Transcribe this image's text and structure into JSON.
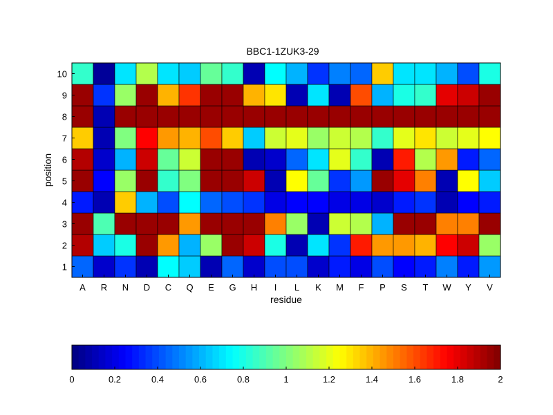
{
  "chart_data": {
    "type": "heatmap",
    "title": "BBC1-1ZUK3-29",
    "xlabel": "residue",
    "ylabel": "position",
    "x_categories": [
      "A",
      "R",
      "N",
      "D",
      "C",
      "Q",
      "E",
      "G",
      "H",
      "I",
      "L",
      "K",
      "M",
      "F",
      "P",
      "S",
      "T",
      "W",
      "Y",
      "V"
    ],
    "y_categories": [
      "1",
      "2",
      "3",
      "4",
      "5",
      "6",
      "7",
      "8",
      "9",
      "10"
    ],
    "colormap": "jet",
    "clim": [
      0,
      2
    ],
    "colorbar": {
      "placement": "bottom",
      "ticks": [
        "0",
        "0.2",
        "0.4",
        "0.6",
        "0.8",
        "1",
        "1.2",
        "1.4",
        "1.6",
        "1.8",
        "2"
      ],
      "tick_values": [
        0,
        0.2,
        0.4,
        0.6,
        0.8,
        1,
        1.2,
        1.4,
        1.6,
        1.8,
        2
      ]
    },
    "values_by_position": [
      [
        0.45,
        0.15,
        0.35,
        0.1,
        0.75,
        0.65,
        0.1,
        0.45,
        0.15,
        0.4,
        0.4,
        0.15,
        0.3,
        0.2,
        0.4,
        0.25,
        0.3,
        0.5,
        0.3,
        0.55
      ],
      [
        1.9,
        0.65,
        0.8,
        1.95,
        1.45,
        0.6,
        1.05,
        1.95,
        1.85,
        0.8,
        0.1,
        0.7,
        0.35,
        1.7,
        1.45,
        1.45,
        1.4,
        1.75,
        1.85,
        1.05
      ],
      [
        1.95,
        0.9,
        1.95,
        1.95,
        1.95,
        1.45,
        1.95,
        1.95,
        1.95,
        1.5,
        1.05,
        0.1,
        1.15,
        1.1,
        0.6,
        1.95,
        1.95,
        1.5,
        1.5,
        1.95
      ],
      [
        0.3,
        0.1,
        1.35,
        0.6,
        0.4,
        0.75,
        0.45,
        0.4,
        0.35,
        0.2,
        0.25,
        0.25,
        0.2,
        0.2,
        0.15,
        0.3,
        0.35,
        0.1,
        0.25,
        0.3
      ],
      [
        1.95,
        0.25,
        1.05,
        1.95,
        0.85,
        1.0,
        1.95,
        1.95,
        1.85,
        0.1,
        1.25,
        0.95,
        0.35,
        0.55,
        1.95,
        1.8,
        1.5,
        0.1,
        1.25,
        0.65
      ],
      [
        1.9,
        0.15,
        0.6,
        1.85,
        0.95,
        1.15,
        1.95,
        1.95,
        0.1,
        0.15,
        0.45,
        0.7,
        1.2,
        0.85,
        0.1,
        1.7,
        1.1,
        1.45,
        0.3,
        0.45
      ],
      [
        1.35,
        0.1,
        1.0,
        1.75,
        1.45,
        1.4,
        1.6,
        1.35,
        0.65,
        1.15,
        1.2,
        1.05,
        1.15,
        1.1,
        0.85,
        1.2,
        1.3,
        1.15,
        1.2,
        1.25
      ],
      [
        1.95,
        0.1,
        1.95,
        1.95,
        1.95,
        1.95,
        1.95,
        1.95,
        1.95,
        1.95,
        1.95,
        1.95,
        1.95,
        1.95,
        1.95,
        1.95,
        1.95,
        1.95,
        1.95,
        1.95
      ],
      [
        1.95,
        0.35,
        1.05,
        1.95,
        1.4,
        1.65,
        1.95,
        1.95,
        1.4,
        1.3,
        0.1,
        0.7,
        0.1,
        1.6,
        0.6,
        0.8,
        0.85,
        1.8,
        1.85,
        1.95
      ],
      [
        0.85,
        0.05,
        0.7,
        1.1,
        0.7,
        0.65,
        0.95,
        0.85,
        0.1,
        0.75,
        0.6,
        0.35,
        0.5,
        0.45,
        1.35,
        0.7,
        0.7,
        0.6,
        0.4,
        0.8
      ]
    ]
  }
}
